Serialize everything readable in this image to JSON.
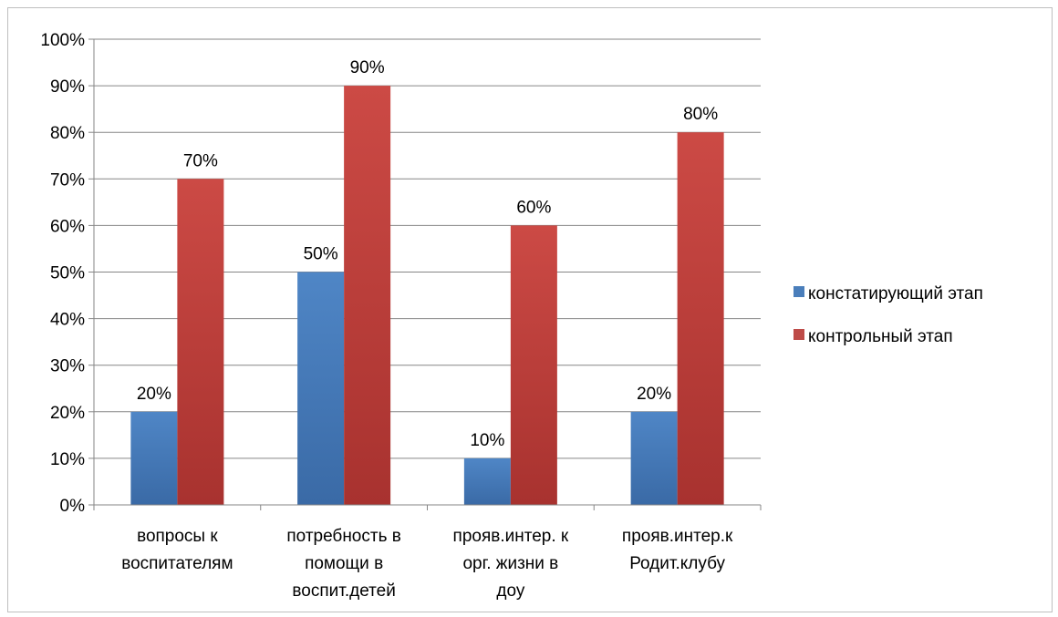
{
  "chart_data": {
    "type": "bar",
    "categories": [
      [
        "вопросы к",
        "воспитателям"
      ],
      [
        "потребность в",
        "помощи в",
        "воспит.детей"
      ],
      [
        "прояв.интер. к",
        "орг. жизни в",
        "доу"
      ],
      [
        "прояв.интер.к",
        "Родит.клубу"
      ]
    ],
    "series": [
      {
        "name": "констатирующий этап",
        "values": [
          20,
          50,
          10,
          20
        ],
        "labels": [
          "20%",
          "50%",
          "10%",
          "20%"
        ],
        "color": "#4a7ebb"
      },
      {
        "name": "контрольный этап",
        "values": [
          70,
          90,
          60,
          80
        ],
        "labels": [
          "70%",
          "90%",
          "60%",
          "80%"
        ],
        "color": "#be4b48"
      }
    ],
    "yticks": [
      "0%",
      "10%",
      "20%",
      "30%",
      "40%",
      "50%",
      "60%",
      "70%",
      "80%",
      "90%",
      "100%"
    ],
    "ylim": [
      0,
      100
    ],
    "grid": true,
    "legend_position": "right"
  }
}
